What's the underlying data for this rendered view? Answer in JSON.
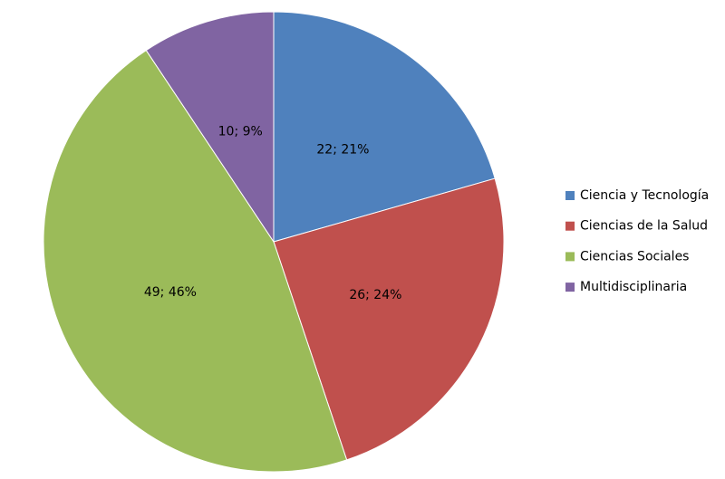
{
  "chart_data": {
    "type": "pie",
    "categories": [
      "Ciencia y Tecnología",
      "Ciencias de la Salud",
      "Ciencias Sociales",
      "Multidisciplinaria"
    ],
    "values": [
      22,
      26,
      49,
      10
    ],
    "value_labels": [
      "22; 21%",
      "26; 24%",
      "49; 46%",
      "10; 9%"
    ],
    "colors": [
      "#4f81bd",
      "#c0504d",
      "#9bbb59",
      "#8064a2"
    ],
    "legend": "right"
  }
}
